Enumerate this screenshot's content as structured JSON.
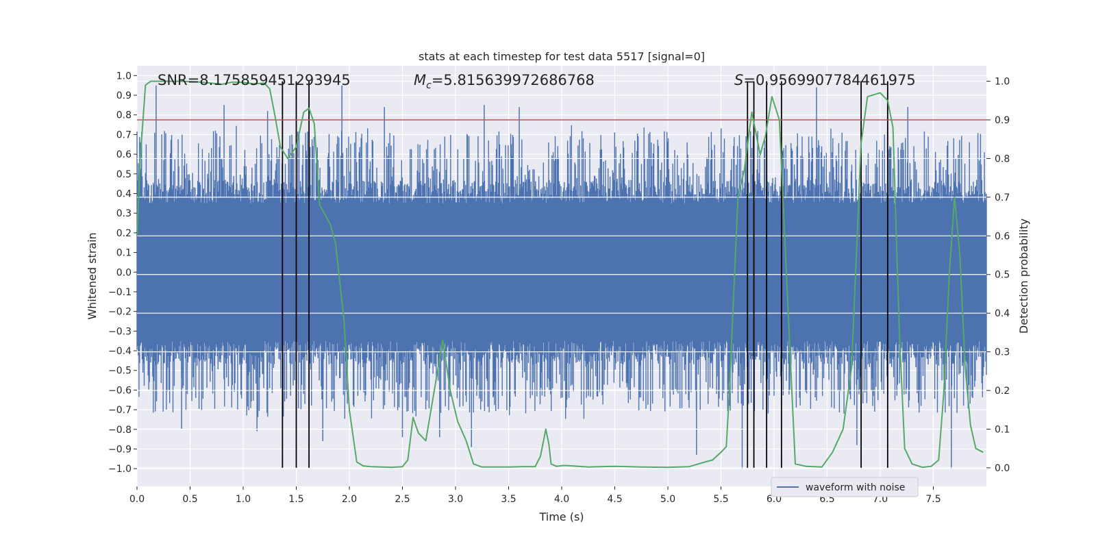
{
  "chart_data": {
    "type": "line",
    "title": "stats at each timestep for test data 5517 [signal=0]",
    "xlabel": "Time (s)",
    "ylabel_left": "Whitened strain",
    "ylabel_right": "Detection probability",
    "xlim": [
      0.0,
      8.0
    ],
    "ylim_left": [
      -1.09,
      1.05
    ],
    "ylim_right": [
      -0.048,
      1.04
    ],
    "xticks": [
      0.0,
      0.5,
      1.0,
      1.5,
      2.0,
      2.5,
      3.0,
      3.5,
      4.0,
      4.5,
      5.0,
      5.5,
      6.0,
      6.5,
      7.0,
      7.5
    ],
    "xtick_labels": [
      "0.0",
      "0.5",
      "1.0",
      "1.5",
      "2.0",
      "2.5",
      "3.0",
      "3.5",
      "4.0",
      "4.5",
      "5.0",
      "5.5",
      "6.0",
      "6.5",
      "7.0",
      "7.5"
    ],
    "yticks_left": [
      1.0,
      0.9,
      0.8,
      0.7,
      0.6,
      0.5,
      0.4,
      0.3,
      0.2,
      0.1,
      0.0,
      -0.1,
      -0.2,
      -0.3,
      -0.4,
      -0.5,
      -0.6,
      -0.7,
      -0.8,
      -0.9,
      -1.0
    ],
    "ytick_labels_left": [
      "1.0",
      "0.9",
      "0.8",
      "0.7",
      "0.6",
      "0.5",
      "0.4",
      "0.3",
      "0.2",
      "0.1",
      "0.0",
      "−0.1",
      "−0.2",
      "−0.3",
      "−0.4",
      "−0.5",
      "−0.6",
      "−0.7",
      "−0.8",
      "−0.9",
      "−1.0"
    ],
    "yticks_right": [
      1.0,
      0.9,
      0.8,
      0.7,
      0.6,
      0.5,
      0.4,
      0.3,
      0.2,
      0.1,
      0.0
    ],
    "ytick_labels_right": [
      "1.0",
      "0.9",
      "0.8",
      "0.7",
      "0.6",
      "0.5",
      "0.4",
      "0.3",
      "0.2",
      "0.1",
      "0.0"
    ],
    "annotations": {
      "snr": "SNR=8.175859451293945",
      "mc_symbol": "M",
      "mc_sub": "c",
      "mc_value": "=5.815639972686768",
      "s_symbol": "S",
      "s_value": "=0.9569907784461975"
    },
    "legend": {
      "label": "waveform with noise",
      "location": "lower-right"
    },
    "threshold": {
      "value": 0.9,
      "axis": "right",
      "color": "#c44e52"
    },
    "event_lines": [
      1.37,
      1.5,
      1.62,
      5.75,
      5.81,
      5.93,
      6.07,
      6.82,
      7.07
    ],
    "waveform": {
      "color": "#4c72b0",
      "duration_s": 8.0,
      "core_amplitude": 0.35,
      "typical_peak": 0.6,
      "peaks": [
        {
          "t": 0.18,
          "v": 0.95
        },
        {
          "t": 0.82,
          "v": 0.85
        },
        {
          "t": 1.23,
          "v": 0.82
        },
        {
          "t": 1.93,
          "v": 0.95
        },
        {
          "t": 2.33,
          "v": 0.84
        },
        {
          "t": 3.27,
          "v": 0.85
        },
        {
          "t": 3.6,
          "v": 0.84
        },
        {
          "t": 6.4,
          "v": 0.94
        },
        {
          "t": 7.26,
          "v": 0.84
        },
        {
          "t": 0.42,
          "v": -0.8
        },
        {
          "t": 1.13,
          "v": -0.81
        },
        {
          "t": 1.75,
          "v": -0.86
        },
        {
          "t": 3.15,
          "v": -0.89
        },
        {
          "t": 5.27,
          "v": -0.93
        },
        {
          "t": 5.7,
          "v": -1.0
        },
        {
          "t": 6.78,
          "v": -0.88
        },
        {
          "t": 7.67,
          "v": -1.0
        },
        {
          "t": 2.5,
          "v": -0.84
        },
        {
          "t": 2.85,
          "v": -0.84
        }
      ]
    },
    "detection_probability": {
      "color": "#55a868",
      "t": [
        0.0,
        0.03,
        0.08,
        0.13,
        0.2,
        0.4,
        0.6,
        0.8,
        0.9,
        1.0,
        1.1,
        1.2,
        1.25,
        1.3,
        1.35,
        1.42,
        1.5,
        1.57,
        1.62,
        1.67,
        1.72,
        1.82,
        1.87,
        1.95,
        2.0,
        2.07,
        2.13,
        2.2,
        2.4,
        2.5,
        2.55,
        2.6,
        2.65,
        2.72,
        2.8,
        2.88,
        2.95,
        3.02,
        3.1,
        3.17,
        3.25,
        3.5,
        3.65,
        3.75,
        3.8,
        3.85,
        3.88,
        3.9,
        3.95,
        4.02,
        4.1,
        4.25,
        4.5,
        4.75,
        5.0,
        5.2,
        5.35,
        5.42,
        5.5,
        5.55,
        5.58,
        5.62,
        5.66,
        5.72,
        5.79,
        5.87,
        5.92,
        5.98,
        6.05,
        6.1,
        6.15,
        6.2,
        6.3,
        6.45,
        6.55,
        6.65,
        6.73,
        6.82,
        6.88,
        7.0,
        7.07,
        7.12,
        7.18,
        7.23,
        7.3,
        7.4,
        7.48,
        7.55,
        7.6,
        7.65,
        7.7,
        7.75,
        7.8,
        7.85,
        7.9,
        7.97
      ],
      "p": [
        0.6,
        0.8,
        0.99,
        1.0,
        1.0,
        1.0,
        0.998,
        0.992,
        0.998,
        0.997,
        0.993,
        0.995,
        0.98,
        0.91,
        0.83,
        0.8,
        0.83,
        0.92,
        0.93,
        0.89,
        0.68,
        0.63,
        0.58,
        0.38,
        0.15,
        0.015,
        0.005,
        0.003,
        0.001,
        0.003,
        0.02,
        0.13,
        0.09,
        0.07,
        0.2,
        0.33,
        0.2,
        0.12,
        0.07,
        0.01,
        0.002,
        0.002,
        0.003,
        0.003,
        0.03,
        0.1,
        0.06,
        0.01,
        0.004,
        0.006,
        0.005,
        0.002,
        0.004,
        0.002,
        0.001,
        0.003,
        0.015,
        0.02,
        0.04,
        0.055,
        0.2,
        0.45,
        0.7,
        0.77,
        0.92,
        0.81,
        0.86,
        0.96,
        0.9,
        0.6,
        0.3,
        0.01,
        0.004,
        0.002,
        0.04,
        0.1,
        0.26,
        0.84,
        0.96,
        0.97,
        0.95,
        0.88,
        0.35,
        0.05,
        0.01,
        0.001,
        0.004,
        0.02,
        0.2,
        0.5,
        0.7,
        0.55,
        0.26,
        0.11,
        0.05,
        0.04
      ]
    }
  }
}
